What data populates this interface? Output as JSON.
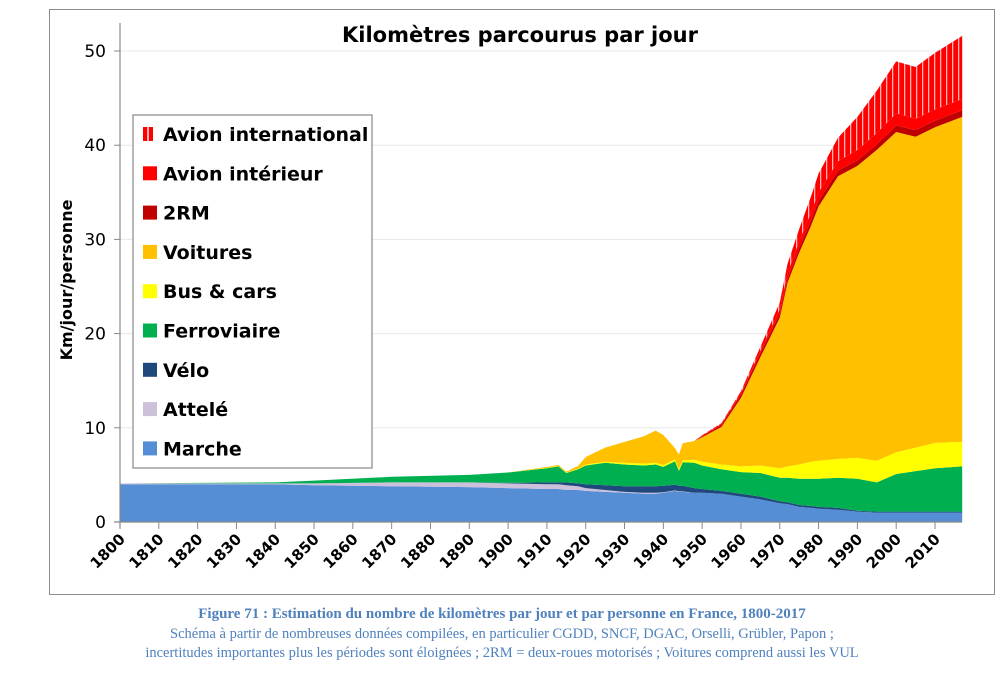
{
  "caption": {
    "figure_title": "Figure 71 : Estimation du nombre de kilomètres par jour et par personne en France, 1800-2017",
    "line1": "Schéma à partir de nombreuses données compilées, en particulier CGDD, SNCF, DGAC, Orselli, Grübler, Papon ;",
    "line2": "incertitudes importantes plus les périodes sont éloignées ; 2RM = deux-roues motorisés ; Voitures comprend aussi les VUL"
  },
  "chart_data": {
    "type": "area",
    "stacked": true,
    "title": "Kilomètres parcourus par jour",
    "xlabel": "",
    "ylabel": "Km/jour/personne",
    "xlim": [
      1800,
      2017
    ],
    "ylim": [
      0,
      52
    ],
    "yticks": [
      0,
      10,
      20,
      30,
      40,
      50
    ],
    "xticks": [
      1800,
      1810,
      1820,
      1830,
      1840,
      1850,
      1860,
      1870,
      1880,
      1890,
      1900,
      1910,
      1920,
      1930,
      1940,
      1950,
      1960,
      1970,
      1980,
      1990,
      2000,
      2010
    ],
    "grid": "horizontal",
    "legend_position": "left",
    "x": [
      1800,
      1840,
      1850,
      1870,
      1890,
      1900,
      1910,
      1913,
      1915,
      1918,
      1920,
      1925,
      1930,
      1935,
      1938,
      1940,
      1943,
      1944,
      1945,
      1948,
      1950,
      1955,
      1960,
      1965,
      1970,
      1972,
      1975,
      1978,
      1980,
      1985,
      1990,
      1995,
      2000,
      2005,
      2010,
      2017
    ],
    "series": [
      {
        "name": "Marche",
        "color": "#558ed5",
        "values": [
          4.0,
          4.0,
          3.9,
          3.8,
          3.7,
          3.6,
          3.5,
          3.5,
          3.4,
          3.4,
          3.3,
          3.2,
          3.1,
          3.0,
          3.0,
          3.1,
          3.3,
          3.2,
          3.2,
          3.1,
          3.1,
          3.0,
          2.7,
          2.4,
          2.0,
          1.9,
          1.6,
          1.5,
          1.4,
          1.3,
          1.1,
          1.0,
          1.0,
          1.0,
          1.0,
          1.0
        ]
      },
      {
        "name": "Attelé",
        "color": "#ccc0da",
        "values": [
          0.1,
          0.1,
          0.2,
          0.4,
          0.5,
          0.5,
          0.5,
          0.5,
          0.5,
          0.4,
          0.3,
          0.2,
          0.1,
          0.1,
          0.1,
          0.05,
          0.05,
          0.05,
          0.05,
          0.0,
          0.0,
          0.0,
          0.0,
          0.0,
          0.0,
          0.0,
          0.0,
          0.0,
          0.0,
          0.0,
          0.0,
          0.0,
          0.0,
          0.0,
          0.0,
          0.0
        ]
      },
      {
        "name": "Vélo",
        "color": "#1f497d",
        "values": [
          0.0,
          0.0,
          0.0,
          0.0,
          0.0,
          0.05,
          0.2,
          0.2,
          0.3,
          0.3,
          0.4,
          0.5,
          0.6,
          0.7,
          0.7,
          0.7,
          0.6,
          0.6,
          0.6,
          0.5,
          0.4,
          0.3,
          0.3,
          0.3,
          0.2,
          0.2,
          0.2,
          0.2,
          0.2,
          0.2,
          0.1,
          0.1,
          0.1,
          0.1,
          0.1,
          0.1
        ]
      },
      {
        "name": "Ferroviaire",
        "color": "#00b050",
        "values": [
          0.0,
          0.1,
          0.3,
          0.6,
          0.8,
          1.1,
          1.5,
          1.7,
          1.0,
          1.5,
          2.0,
          2.4,
          2.3,
          2.2,
          2.3,
          2.0,
          2.5,
          1.6,
          2.5,
          2.7,
          2.5,
          2.3,
          2.3,
          2.5,
          2.5,
          2.6,
          2.8,
          2.9,
          3.0,
          3.2,
          3.4,
          3.1,
          4.0,
          4.3,
          4.6,
          4.8
        ]
      },
      {
        "name": "Bus & cars",
        "color": "#ffff00",
        "values": [
          0.0,
          0.0,
          0.0,
          0.0,
          0.0,
          0.0,
          0.05,
          0.05,
          0.05,
          0.05,
          0.1,
          0.1,
          0.2,
          0.2,
          0.2,
          0.2,
          0.2,
          0.2,
          0.2,
          0.3,
          0.4,
          0.5,
          0.6,
          0.8,
          1.0,
          1.2,
          1.5,
          1.8,
          1.9,
          2.0,
          2.2,
          2.3,
          2.3,
          2.5,
          2.7,
          2.6
        ]
      },
      {
        "name": "Voitures",
        "color": "#ffc000",
        "values": [
          0.0,
          0.0,
          0.0,
          0.0,
          0.0,
          0.0,
          0.1,
          0.1,
          0.1,
          0.3,
          0.8,
          1.5,
          2.2,
          2.9,
          3.4,
          3.2,
          1.2,
          1.5,
          1.8,
          2.0,
          2.6,
          4.0,
          7.3,
          11.5,
          16.0,
          19.5,
          22.5,
          25.0,
          27.0,
          30.0,
          31.0,
          33.0,
          34.0,
          33.0,
          33.5,
          34.5
        ]
      },
      {
        "name": "2RM",
        "color": "#c00000",
        "values": [
          0.0,
          0.0,
          0.0,
          0.0,
          0.0,
          0.0,
          0.0,
          0.0,
          0.0,
          0.0,
          0.0,
          0.0,
          0.0,
          0.0,
          0.0,
          0.0,
          0.0,
          0.0,
          0.0,
          0.0,
          0.1,
          0.2,
          0.3,
          0.4,
          0.4,
          0.4,
          0.5,
          0.6,
          0.6,
          0.6,
          0.6,
          0.6,
          0.7,
          0.7,
          0.7,
          0.7
        ]
      },
      {
        "name": "Avion intérieur",
        "color": "#ff0000",
        "values": [
          0.0,
          0.0,
          0.0,
          0.0,
          0.0,
          0.0,
          0.0,
          0.0,
          0.0,
          0.0,
          0.0,
          0.0,
          0.0,
          0.0,
          0.0,
          0.0,
          0.0,
          0.0,
          0.0,
          0.0,
          0.05,
          0.1,
          0.2,
          0.3,
          0.5,
          0.6,
          0.7,
          0.8,
          0.9,
          1.0,
          1.1,
          1.2,
          1.3,
          1.2,
          1.2,
          1.2
        ]
      },
      {
        "name": "Avion international",
        "color": "#ff0000",
        "pattern": "vertical-stripes",
        "values": [
          0.0,
          0.0,
          0.0,
          0.0,
          0.0,
          0.0,
          0.0,
          0.0,
          0.0,
          0.0,
          0.0,
          0.0,
          0.0,
          0.0,
          0.0,
          0.0,
          0.0,
          0.0,
          0.0,
          0.0,
          0.05,
          0.1,
          0.2,
          0.4,
          0.7,
          1.0,
          1.3,
          1.7,
          2.0,
          2.5,
          3.5,
          4.5,
          5.5,
          5.5,
          6.0,
          6.7
        ]
      }
    ]
  }
}
